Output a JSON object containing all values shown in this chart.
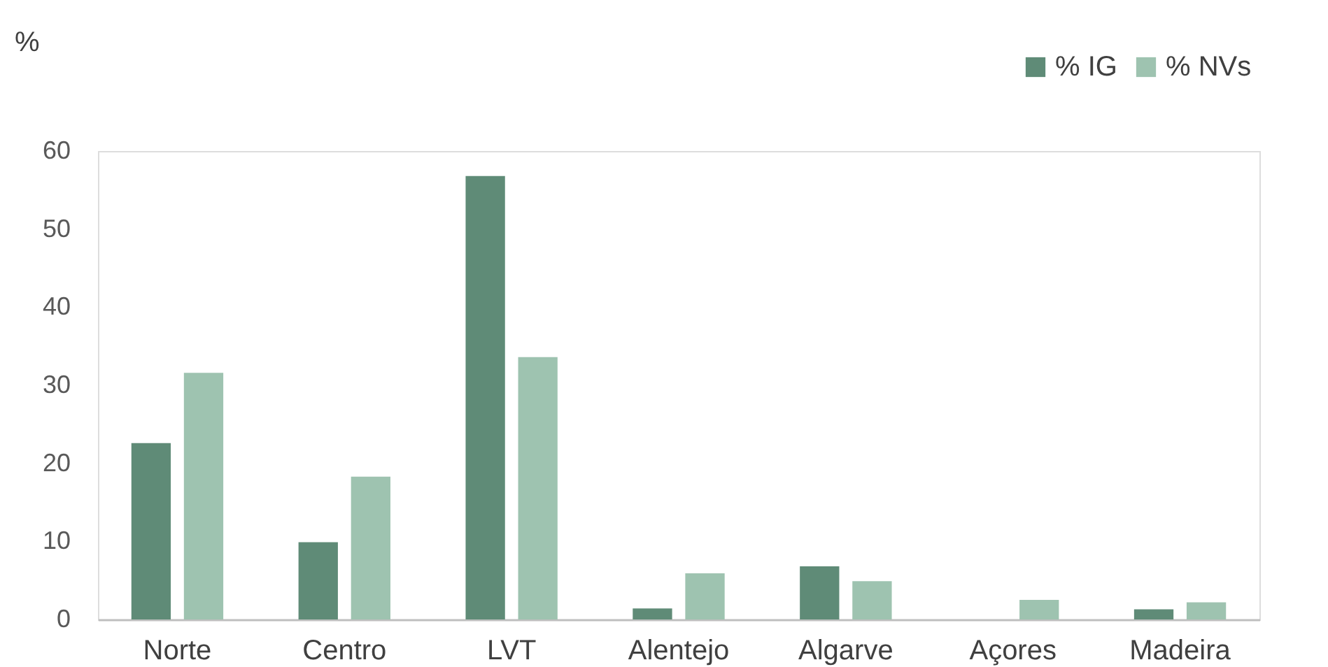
{
  "chart_data": {
    "type": "bar",
    "ylabel": "%",
    "categories": [
      "Norte",
      "Centro",
      "LVT",
      "Alentejo",
      "Algarve",
      "Açores",
      "Madeira"
    ],
    "series": [
      {
        "name": "% IG",
        "color": "#5f8b77",
        "values": [
          22.6,
          9.9,
          56.8,
          1.4,
          6.8,
          0,
          1.3
        ]
      },
      {
        "name": "% NVs",
        "color": "#9ec3b0",
        "values": [
          31.6,
          18.3,
          33.6,
          5.9,
          4.9,
          2.5,
          2.2
        ]
      }
    ],
    "ylim": [
      0,
      60
    ],
    "yticks": [
      0,
      10,
      20,
      30,
      40,
      50,
      60
    ],
    "grid": false,
    "legend": "top right"
  }
}
